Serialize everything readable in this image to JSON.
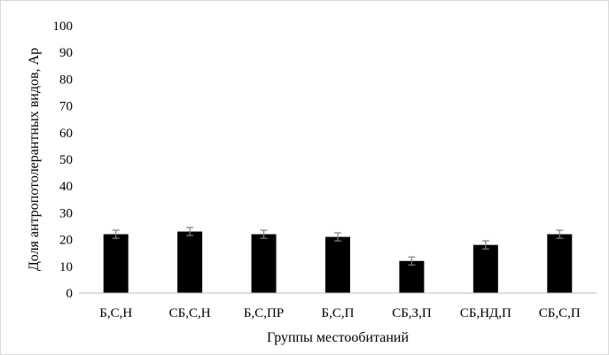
{
  "chart_data": {
    "type": "bar",
    "title": "",
    "xlabel": "Группы местообитаний",
    "ylabel": "Доля антропотолерантных видов, Ар",
    "categories": [
      "Б,С,Н",
      "СБ,С,Н",
      "Б,С,ПР",
      "Б,С,П",
      "СБ,З,П",
      "СБ,НД,П",
      "СБ,С,П"
    ],
    "values": [
      22,
      23,
      22,
      21,
      12,
      18,
      22
    ],
    "error": [
      1.5,
      1.5,
      1.5,
      1.5,
      1.5,
      1.5,
      1.5
    ],
    "ylim": [
      0,
      100
    ],
    "yticks": [
      0,
      10,
      20,
      30,
      40,
      50,
      60,
      70,
      80,
      90,
      100
    ],
    "grid": false,
    "legend": "none",
    "bar_color": "#000000",
    "axis_color": "#bfbfbf",
    "error_bar_color": "#7f7f7f"
  }
}
